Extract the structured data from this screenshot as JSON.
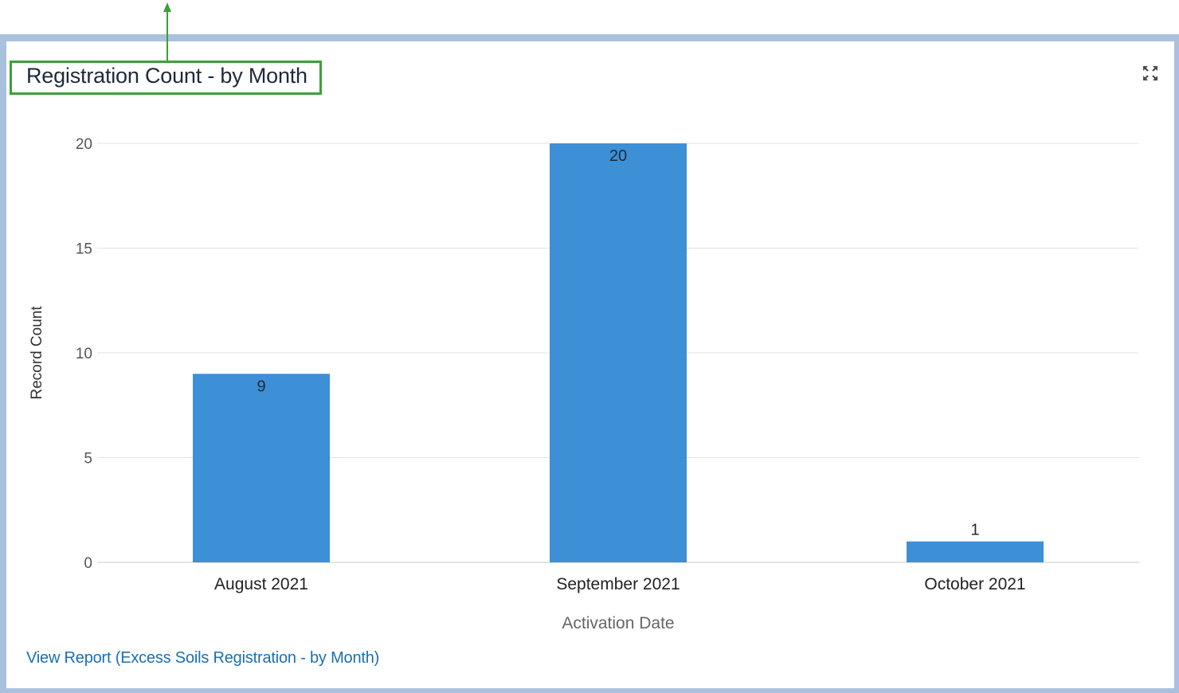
{
  "widget": {
    "title": "Registration Count - by Month",
    "expand_icon": "expand-icon",
    "report_link": "View Report (Excess Soils Registration - by Month)"
  },
  "colors": {
    "bar": "#3d8fd6",
    "highlight": "#3aa137",
    "link": "#1a6fb3",
    "frame": "#a9c1dc"
  },
  "chart_data": {
    "type": "bar",
    "categories": [
      "August 2021",
      "September 2021",
      "October 2021"
    ],
    "values": [
      9,
      20,
      1
    ],
    "data_labels": [
      "9",
      "20",
      "1"
    ],
    "yticks": [
      "0",
      "5",
      "10",
      "15",
      "20"
    ],
    "ylim": [
      0,
      20
    ],
    "xlabel": "Activation Date",
    "ylabel": "Record Count",
    "grid": true
  }
}
